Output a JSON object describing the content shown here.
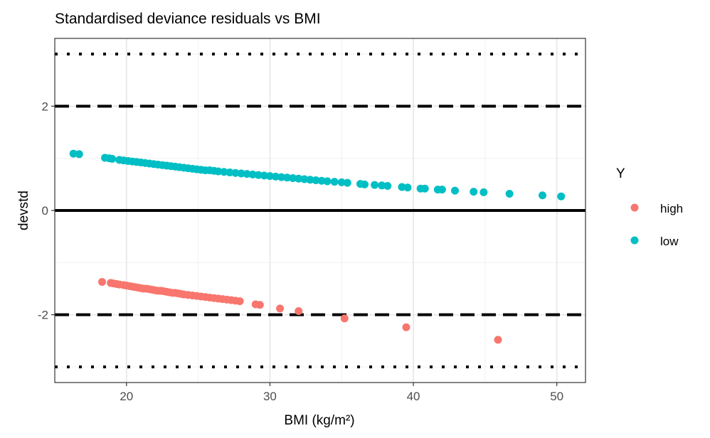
{
  "chart_data": {
    "type": "scatter",
    "title": "Standardised deviance residuals vs BMI",
    "xlabel": "BMI (kg/m²)",
    "ylabel": "devstd",
    "xlim": [
      15,
      52
    ],
    "ylim": [
      -3.3,
      3.3
    ],
    "x_ticks": [
      20,
      30,
      40,
      50
    ],
    "y_ticks": [
      -2,
      0,
      2
    ],
    "x_tick_labels": [
      "20",
      "30",
      "40",
      "50"
    ],
    "y_tick_labels": [
      "-2",
      "0",
      "2"
    ],
    "grid": true,
    "reference_lines": [
      {
        "y": 0,
        "style": "solid"
      },
      {
        "y": 2,
        "style": "dashed"
      },
      {
        "y": -2,
        "style": "dashed"
      },
      {
        "y": 3,
        "style": "dotted"
      },
      {
        "y": -3,
        "style": "dotted"
      }
    ],
    "legend": {
      "title": "Y",
      "placement": "right"
    },
    "series": [
      {
        "name": "high",
        "color": "#F8766D",
        "x": [
          18.3,
          18.9,
          19.1,
          19.3,
          19.5,
          19.8,
          20.0,
          20.2,
          20.4,
          20.6,
          20.8,
          21.0,
          21.2,
          21.4,
          21.6,
          21.8,
          22.0,
          22.2,
          22.4,
          22.6,
          22.8,
          23.0,
          23.2,
          23.4,
          23.6,
          23.8,
          24.0,
          24.3,
          24.6,
          24.9,
          25.2,
          25.5,
          25.8,
          26.1,
          26.4,
          26.7,
          27.0,
          27.3,
          27.6,
          27.9,
          29.0,
          29.3,
          30.7,
          32.0,
          35.2,
          39.5,
          45.9
        ],
        "y": [
          -1.37,
          -1.39,
          -1.4,
          -1.41,
          -1.42,
          -1.43,
          -1.44,
          -1.45,
          -1.46,
          -1.47,
          -1.48,
          -1.49,
          -1.5,
          -1.5,
          -1.51,
          -1.52,
          -1.53,
          -1.54,
          -1.54,
          -1.55,
          -1.56,
          -1.57,
          -1.58,
          -1.58,
          -1.59,
          -1.6,
          -1.61,
          -1.62,
          -1.63,
          -1.64,
          -1.65,
          -1.66,
          -1.67,
          -1.68,
          -1.69,
          -1.7,
          -1.71,
          -1.72,
          -1.73,
          -1.74,
          -1.8,
          -1.81,
          -1.88,
          -1.93,
          -2.07,
          -2.24,
          -2.48
        ]
      },
      {
        "name": "low",
        "color": "#00BFC4",
        "x": [
          16.3,
          16.7,
          18.5,
          18.8,
          19.0,
          19.5,
          19.8,
          20.1,
          20.4,
          20.7,
          21.0,
          21.3,
          21.6,
          21.9,
          22.2,
          22.5,
          22.8,
          23.1,
          23.4,
          23.7,
          24.0,
          24.3,
          24.6,
          24.9,
          25.2,
          25.5,
          25.8,
          26.1,
          26.4,
          26.8,
          27.2,
          27.6,
          28.0,
          28.4,
          28.8,
          29.2,
          29.6,
          30.0,
          30.4,
          30.8,
          31.2,
          31.6,
          32.0,
          32.4,
          32.8,
          33.2,
          33.6,
          34.0,
          34.5,
          35.0,
          35.4,
          36.3,
          36.6,
          37.3,
          37.8,
          38.2,
          39.2,
          39.6,
          40.5,
          40.8,
          41.7,
          42.0,
          42.9,
          44.2,
          44.9,
          46.7,
          49.0,
          50.3
        ],
        "y": [
          1.09,
          1.08,
          1.01,
          1.0,
          0.99,
          0.97,
          0.96,
          0.95,
          0.94,
          0.93,
          0.92,
          0.91,
          0.9,
          0.89,
          0.88,
          0.87,
          0.86,
          0.85,
          0.84,
          0.83,
          0.82,
          0.81,
          0.8,
          0.79,
          0.78,
          0.77,
          0.77,
          0.76,
          0.75,
          0.74,
          0.73,
          0.72,
          0.71,
          0.7,
          0.69,
          0.68,
          0.67,
          0.66,
          0.65,
          0.64,
          0.63,
          0.62,
          0.61,
          0.6,
          0.59,
          0.58,
          0.57,
          0.56,
          0.55,
          0.54,
          0.53,
          0.51,
          0.5,
          0.49,
          0.48,
          0.47,
          0.45,
          0.44,
          0.42,
          0.42,
          0.4,
          0.4,
          0.38,
          0.36,
          0.35,
          0.32,
          0.29,
          0.27
        ]
      }
    ]
  }
}
